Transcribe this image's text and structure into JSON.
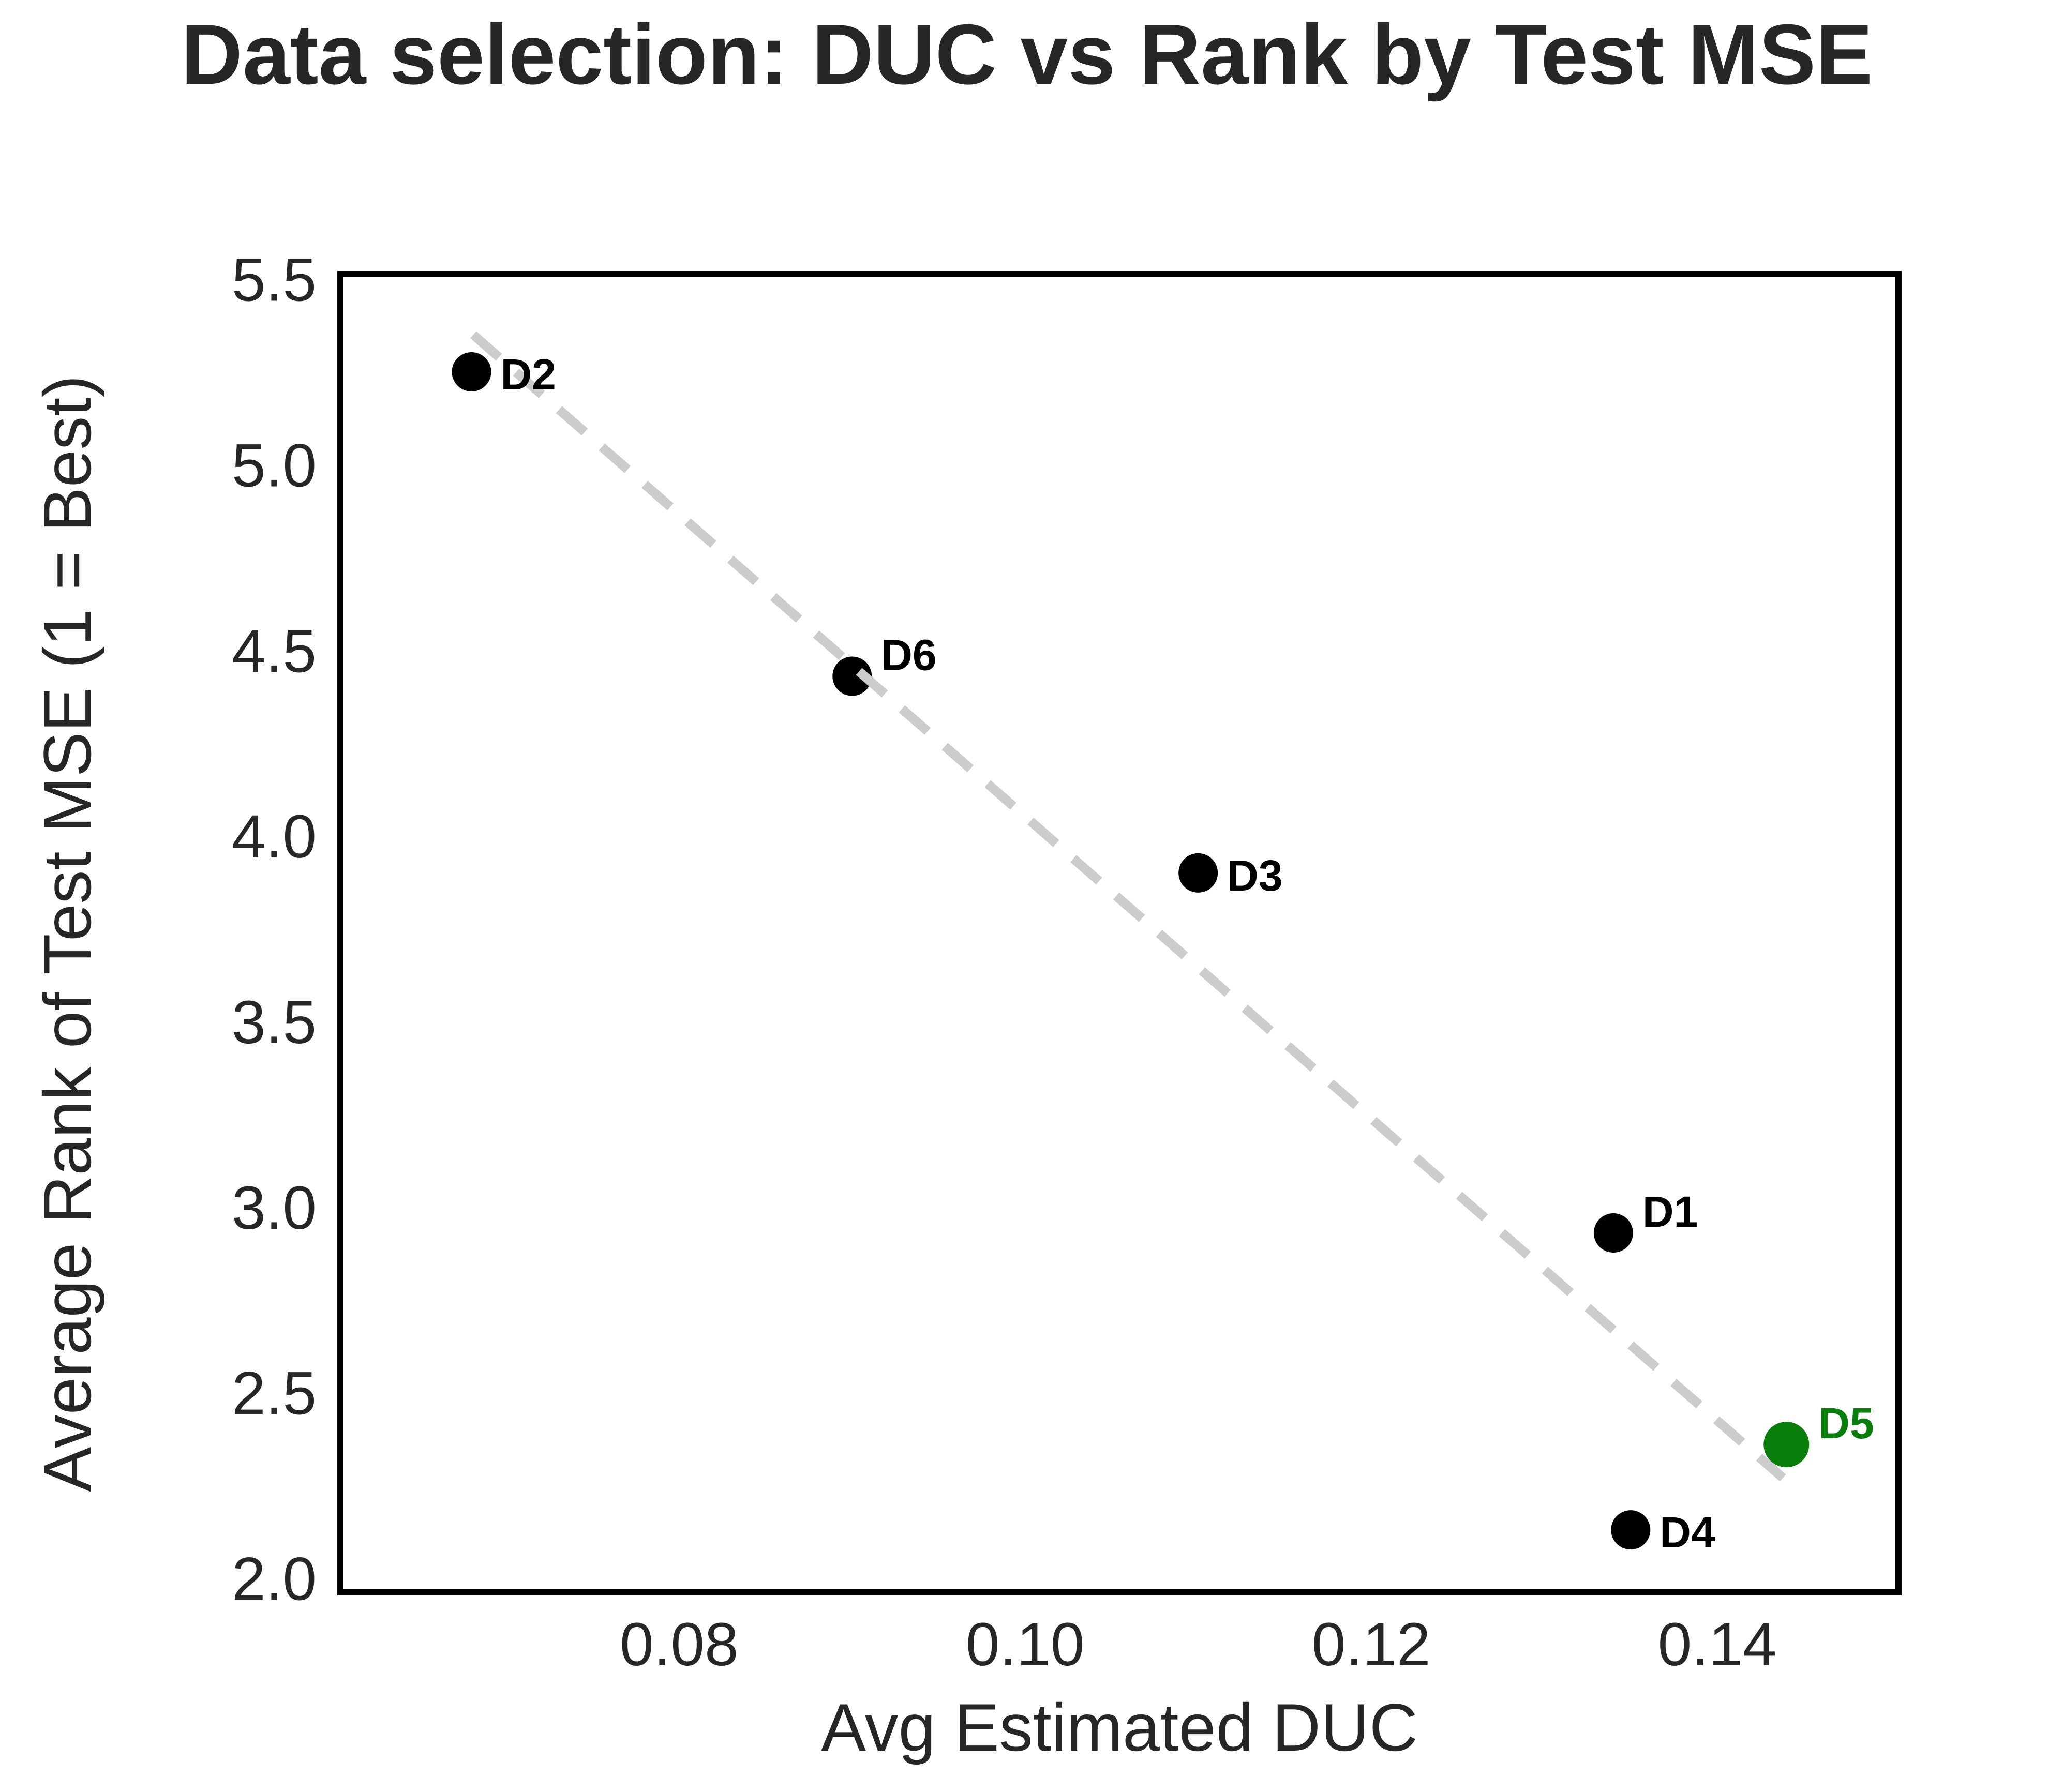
{
  "figure": {
    "background": "#ffffff",
    "text_color": "#262626",
    "axis_border_color": "#000000",
    "highlight_color": "#0a7e0a",
    "trend_color": "#cccccc"
  },
  "chart_data": {
    "type": "scatter",
    "title": "Data selection: DUC vs Rank by Test MSE",
    "xlabel": "Avg Estimated DUC",
    "ylabel": "Average Rank of Test MSE (1 = Best)",
    "xlim": [
      0.0606,
      0.1503
    ],
    "ylim": [
      1.97,
      5.505
    ],
    "grid": false,
    "legend": false,
    "x_ticks": {
      "values": [
        0.08,
        0.1,
        0.12,
        0.14
      ],
      "labels": [
        "0.08",
        "0.10",
        "0.12",
        "0.14"
      ]
    },
    "y_ticks": {
      "values": [
        5.5,
        5.0,
        4.5,
        4.0,
        3.5,
        3.0,
        2.5,
        2.0
      ],
      "labels": [
        "5.5",
        "5.0",
        "4.5",
        "4.0",
        "3.5",
        "3.0",
        "2.5",
        "2.0"
      ]
    },
    "points": [
      {
        "label": "D2",
        "x": 0.068,
        "y": 5.25,
        "color": "#000000",
        "radius": 38,
        "label_placement": "right"
      },
      {
        "label": "D6",
        "x": 0.09,
        "y": 4.43,
        "color": "#000000",
        "radius": 38,
        "label_placement": "upper-right"
      },
      {
        "label": "D3",
        "x": 0.11,
        "y": 3.9,
        "color": "#000000",
        "radius": 38,
        "label_placement": "right"
      },
      {
        "label": "D1",
        "x": 0.134,
        "y": 2.93,
        "color": "#000000",
        "radius": 38,
        "label_placement": "upper-right"
      },
      {
        "label": "D5",
        "x": 0.144,
        "y": 2.36,
        "color": "#0a7e0a",
        "radius": 44,
        "label_placement": "upper-right",
        "highlight": true
      },
      {
        "label": "D4",
        "x": 0.135,
        "y": 2.13,
        "color": "#000000",
        "radius": 38,
        "label_placement": "right"
      }
    ],
    "trend_line": {
      "x1": 0.0681,
      "y1": 5.35,
      "x2": 0.1438,
      "y2": 2.27,
      "color": "#cccccc",
      "style": "dashed",
      "stroke_width": 18,
      "dash": [
        66,
        44
      ]
    }
  }
}
